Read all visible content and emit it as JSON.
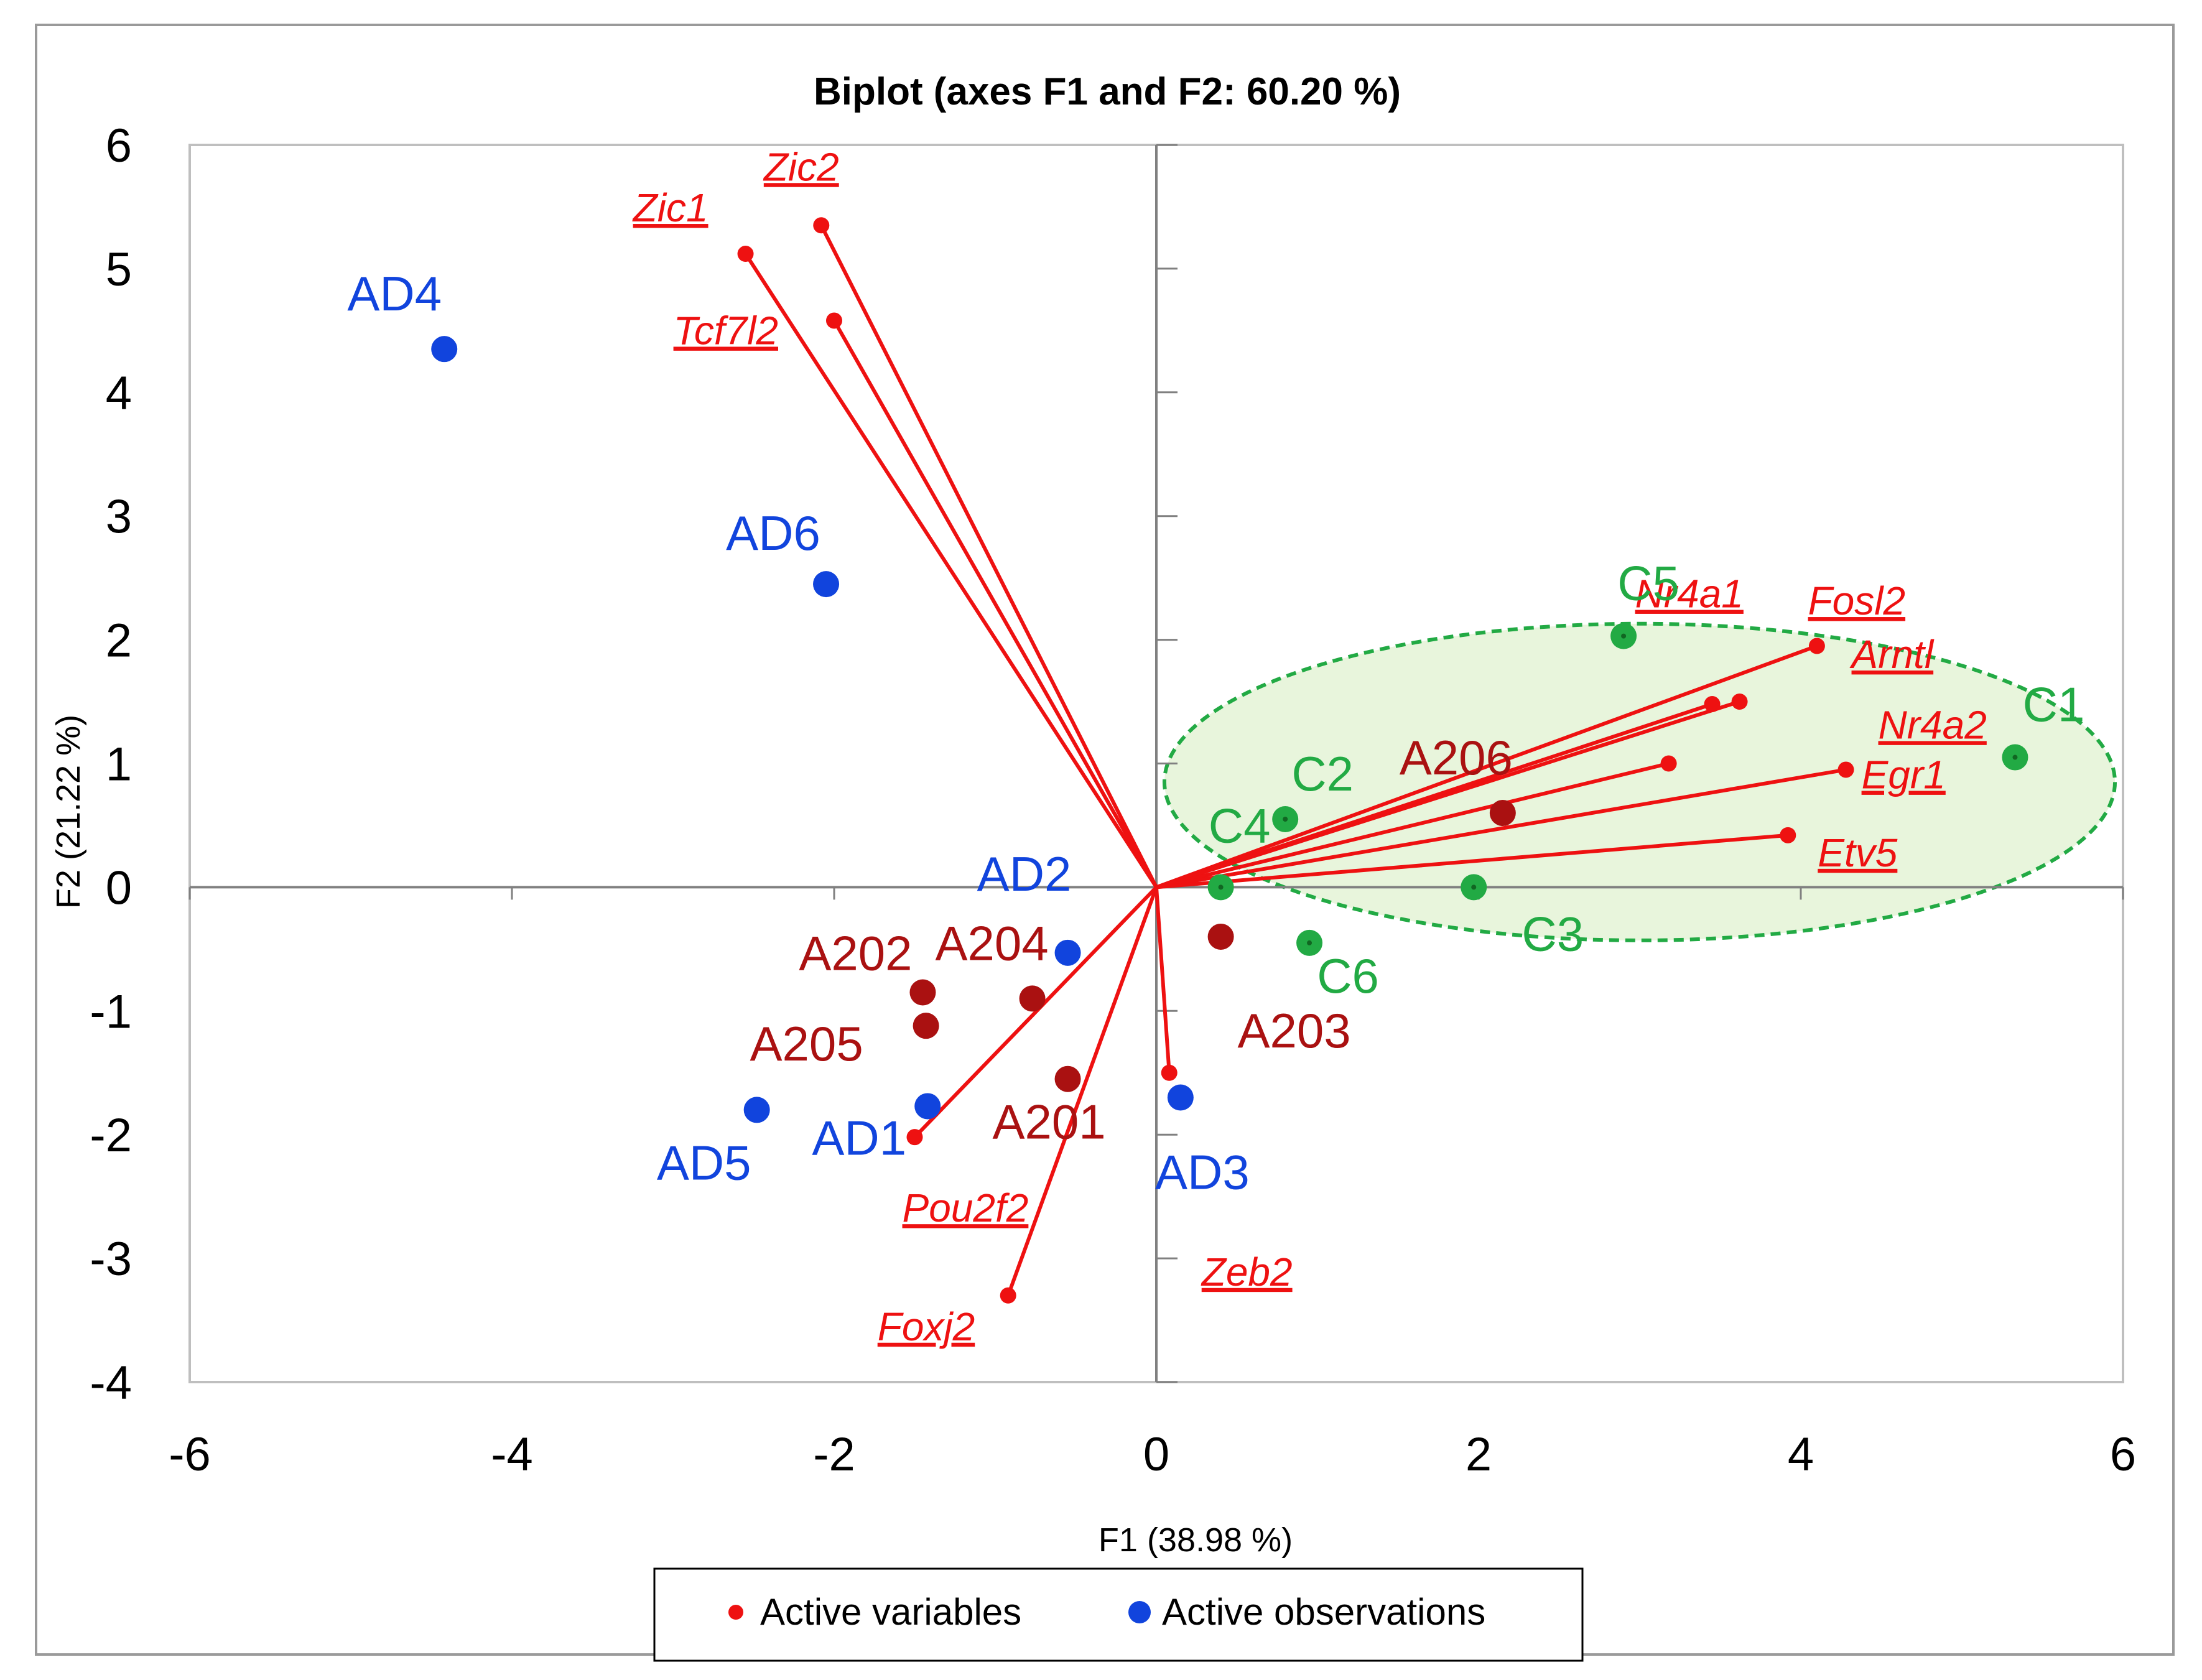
{
  "chart_data": {
    "type": "scatter",
    "subtype": "pca-biplot",
    "title": "Biplot (axes F1 and F2: 60.20 %)",
    "xlabel": "F1 (38.98 %)",
    "ylabel": "F2 (21.22 %)",
    "xlim": [
      -6,
      6
    ],
    "ylim": [
      -4,
      6
    ],
    "x_ticks": [
      -6,
      -4,
      -2,
      0,
      2,
      4,
      6
    ],
    "y_ticks": [
      -4,
      -3,
      -2,
      -1,
      0,
      1,
      2,
      3,
      4,
      5,
      6
    ],
    "x_tick_labels": [
      "-6",
      "-4",
      "-2",
      "0",
      "2",
      "4",
      "6"
    ],
    "y_tick_labels": [
      "-4",
      "-3",
      "-2",
      "-1",
      "0",
      "1",
      "2",
      "3",
      "4",
      "5",
      "6"
    ],
    "colors": {
      "variables": "#ee1111",
      "observations_ad": "#1144dd",
      "observations_a": "#aa1111",
      "observations_c": "#22aa44",
      "ellipse_stroke": "#22aa44",
      "ellipse_fill": "#e8f5dc",
      "axis": "#808080"
    },
    "active_variables": [
      {
        "name": "Zic2",
        "x": -2.08,
        "y": 5.35
      },
      {
        "name": "Zic1",
        "x": -2.55,
        "y": 5.12
      },
      {
        "name": "Tcf7l2",
        "x": -2.0,
        "y": 4.58
      },
      {
        "name": "Nr4a1",
        "x": 4.1,
        "y": 1.95
      },
      {
        "name": "Fosl2",
        "x": 3.62,
        "y": 1.5
      },
      {
        "name": "Arntl",
        "x": 3.45,
        "y": 1.48
      },
      {
        "name": "Egr1",
        "x": 3.18,
        "y": 1.0
      },
      {
        "name": "Nr4a2",
        "x": 4.28,
        "y": 0.95
      },
      {
        "name": "Etv5",
        "x": 3.92,
        "y": 0.42
      },
      {
        "name": "Pou2f2",
        "x": -1.5,
        "y": -2.02
      },
      {
        "name": "Foxj2",
        "x": -0.92,
        "y": -3.3
      },
      {
        "name": "Zeb2",
        "x": 0.08,
        "y": -1.5
      }
    ],
    "active_observations": [
      {
        "name": "AD4",
        "x": -4.42,
        "y": 4.35,
        "group": "AD"
      },
      {
        "name": "AD6",
        "x": -2.05,
        "y": 2.45,
        "group": "AD"
      },
      {
        "name": "AD2",
        "x": -0.55,
        "y": -0.53,
        "group": "AD"
      },
      {
        "name": "AD1",
        "x": -1.42,
        "y": -1.77,
        "group": "AD"
      },
      {
        "name": "AD5",
        "x": -2.48,
        "y": -1.8,
        "group": "AD"
      },
      {
        "name": "AD3",
        "x": 0.15,
        "y": -1.7,
        "group": "AD"
      },
      {
        "name": "A202",
        "x": -1.45,
        "y": -0.85,
        "group": "A"
      },
      {
        "name": "A205",
        "x": -1.43,
        "y": -1.12,
        "group": "A"
      },
      {
        "name": "A204",
        "x": -0.77,
        "y": -0.9,
        "group": "A"
      },
      {
        "name": "A201",
        "x": -0.55,
        "y": -1.55,
        "group": "A"
      },
      {
        "name": "A203",
        "x": 0.4,
        "y": -0.4,
        "group": "A"
      },
      {
        "name": "A206",
        "x": 2.15,
        "y": 0.6,
        "group": "A"
      },
      {
        "name": "C1",
        "x": 5.33,
        "y": 1.05,
        "group": "C"
      },
      {
        "name": "C2",
        "x": 0.8,
        "y": 0.55,
        "group": "C"
      },
      {
        "name": "C3",
        "x": 1.97,
        "y": 0.0,
        "group": "C"
      },
      {
        "name": "C4",
        "x": 0.4,
        "y": 0.0,
        "group": "C"
      },
      {
        "name": "C5",
        "x": 2.9,
        "y": 2.03,
        "group": "C"
      },
      {
        "name": "C6",
        "x": 0.95,
        "y": -0.45,
        "group": "C"
      }
    ],
    "cluster_ellipse": {
      "group": "C",
      "center": [
        3.0,
        0.85
      ],
      "radii": [
        2.95,
        1.28
      ]
    },
    "legend": {
      "position": "bottom-center",
      "items": [
        {
          "label": "Active variables",
          "color": "#ee1111"
        },
        {
          "label": "Active observations",
          "color": "#1144dd"
        }
      ]
    }
  }
}
